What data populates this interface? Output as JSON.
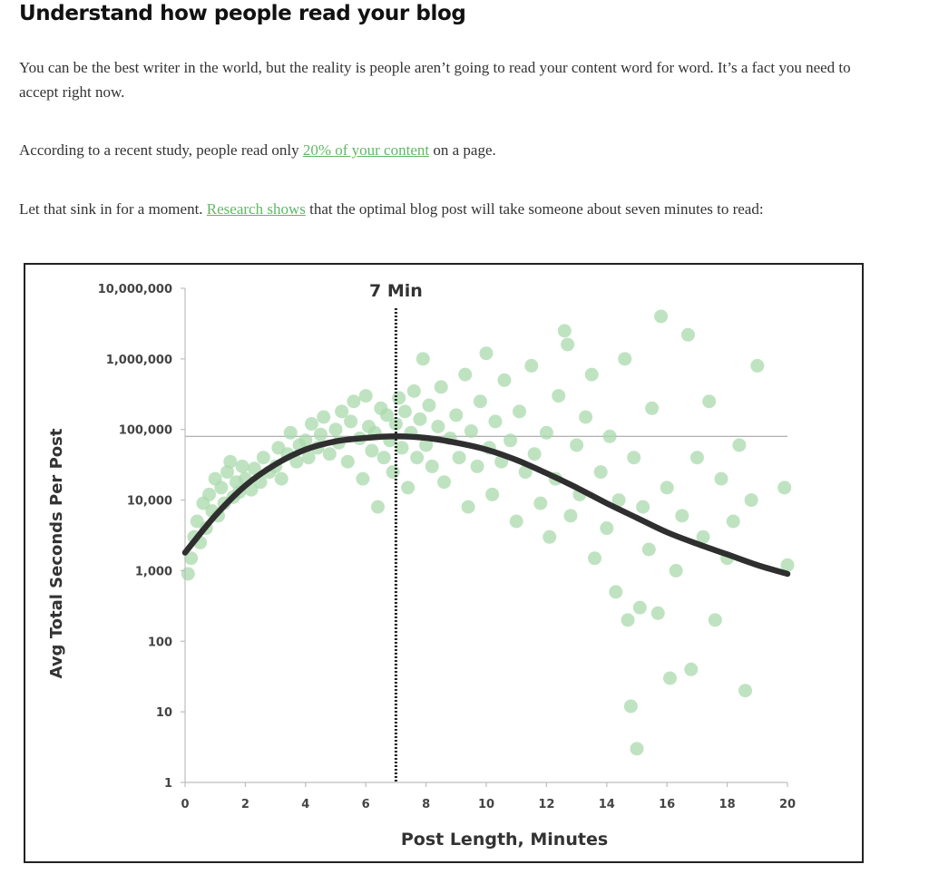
{
  "article": {
    "heading": "Understand how people read your blog",
    "para1": "You can be the best writer in the world, but the reality is people aren’t going to read your content word for word. It’s a fact you need to accept right now.",
    "para2_before": "According to a recent study, people read only ",
    "para2_link": "20% of your content",
    "para2_after": " on a page.",
    "para3_before": "Let that sink in for a moment. ",
    "para3_link": "Research shows",
    "para3_after": " that the optimal blog post will take someone about seven minutes to read:"
  },
  "colors": {
    "link": "#62b866",
    "points": "#a9d9ac",
    "curve": "#2f2f2f"
  },
  "chart_data": {
    "type": "scatter",
    "xlabel": "Post Length, Minutes",
    "ylabel": "Avg Total Seconds Per Post",
    "scale_y": "log",
    "xlim": [
      0,
      20
    ],
    "ylim": [
      1,
      10000000
    ],
    "x_ticks": [
      "0",
      "2",
      "4",
      "6",
      "8",
      "10",
      "12",
      "14",
      "16",
      "18",
      "20"
    ],
    "y_ticks": [
      {
        "value": 1,
        "label": "1"
      },
      {
        "value": 10,
        "label": "10"
      },
      {
        "value": 100,
        "label": "100"
      },
      {
        "value": 1000,
        "label": "1,000"
      },
      {
        "value": 10000,
        "label": "10,000"
      },
      {
        "value": 100000,
        "label": "100,000"
      },
      {
        "value": 1000000,
        "label": "1,000,000"
      },
      {
        "value": 10000000,
        "label": "10,000,000"
      }
    ],
    "reference_line": {
      "x": 7,
      "label": "7 Min"
    },
    "reference_hline": {
      "y": 80000
    },
    "curve": {
      "x": [
        0,
        1,
        2,
        3,
        4,
        5,
        6,
        7,
        8,
        9,
        10,
        11,
        12,
        13,
        14,
        15,
        16,
        17,
        18,
        19,
        20
      ],
      "y": [
        1800,
        6000,
        16000,
        32000,
        52000,
        68000,
        76000,
        80000,
        76000,
        65000,
        52000,
        37000,
        24000,
        15000,
        9000,
        5600,
        3500,
        2400,
        1700,
        1200,
        900
      ]
    },
    "points": [
      {
        "x": 0.1,
        "y": 900
      },
      {
        "x": 0.2,
        "y": 1500
      },
      {
        "x": 0.3,
        "y": 3000
      },
      {
        "x": 0.4,
        "y": 5000
      },
      {
        "x": 0.5,
        "y": 2500
      },
      {
        "x": 0.6,
        "y": 9000
      },
      {
        "x": 0.7,
        "y": 4000
      },
      {
        "x": 0.8,
        "y": 12000
      },
      {
        "x": 0.9,
        "y": 7000
      },
      {
        "x": 1.0,
        "y": 20000
      },
      {
        "x": 1.1,
        "y": 6000
      },
      {
        "x": 1.2,
        "y": 15000
      },
      {
        "x": 1.3,
        "y": 9000
      },
      {
        "x": 1.4,
        "y": 25000
      },
      {
        "x": 1.5,
        "y": 35000
      },
      {
        "x": 1.6,
        "y": 11000
      },
      {
        "x": 1.7,
        "y": 18000
      },
      {
        "x": 1.8,
        "y": 13000
      },
      {
        "x": 1.9,
        "y": 30000
      },
      {
        "x": 2.0,
        "y": 20000
      },
      {
        "x": 2.2,
        "y": 14000
      },
      {
        "x": 2.3,
        "y": 28000
      },
      {
        "x": 2.5,
        "y": 18000
      },
      {
        "x": 2.6,
        "y": 40000
      },
      {
        "x": 2.8,
        "y": 25000
      },
      {
        "x": 3.0,
        "y": 30000
      },
      {
        "x": 3.1,
        "y": 55000
      },
      {
        "x": 3.2,
        "y": 20000
      },
      {
        "x": 3.4,
        "y": 45000
      },
      {
        "x": 3.5,
        "y": 90000
      },
      {
        "x": 3.7,
        "y": 35000
      },
      {
        "x": 3.8,
        "y": 60000
      },
      {
        "x": 4.0,
        "y": 70000
      },
      {
        "x": 4.1,
        "y": 40000
      },
      {
        "x": 4.2,
        "y": 120000
      },
      {
        "x": 4.4,
        "y": 55000
      },
      {
        "x": 4.5,
        "y": 85000
      },
      {
        "x": 4.6,
        "y": 150000
      },
      {
        "x": 4.8,
        "y": 45000
      },
      {
        "x": 5.0,
        "y": 100000
      },
      {
        "x": 5.1,
        "y": 65000
      },
      {
        "x": 5.2,
        "y": 180000
      },
      {
        "x": 5.4,
        "y": 35000
      },
      {
        "x": 5.5,
        "y": 130000
      },
      {
        "x": 5.6,
        "y": 250000
      },
      {
        "x": 5.8,
        "y": 75000
      },
      {
        "x": 5.9,
        "y": 20000
      },
      {
        "x": 6.0,
        "y": 300000
      },
      {
        "x": 6.1,
        "y": 110000
      },
      {
        "x": 6.2,
        "y": 50000
      },
      {
        "x": 6.3,
        "y": 90000
      },
      {
        "x": 6.4,
        "y": 8000
      },
      {
        "x": 6.5,
        "y": 200000
      },
      {
        "x": 6.6,
        "y": 40000
      },
      {
        "x": 6.7,
        "y": 160000
      },
      {
        "x": 6.8,
        "y": 70000
      },
      {
        "x": 6.9,
        "y": 25000
      },
      {
        "x": 7.0,
        "y": 120000
      },
      {
        "x": 7.1,
        "y": 280000
      },
      {
        "x": 7.2,
        "y": 55000
      },
      {
        "x": 7.3,
        "y": 180000
      },
      {
        "x": 7.4,
        "y": 15000
      },
      {
        "x": 7.5,
        "y": 90000
      },
      {
        "x": 7.6,
        "y": 350000
      },
      {
        "x": 7.7,
        "y": 40000
      },
      {
        "x": 7.8,
        "y": 140000
      },
      {
        "x": 7.9,
        "y": 1000000
      },
      {
        "x": 8.0,
        "y": 60000
      },
      {
        "x": 8.1,
        "y": 220000
      },
      {
        "x": 8.2,
        "y": 30000
      },
      {
        "x": 8.4,
        "y": 110000
      },
      {
        "x": 8.5,
        "y": 400000
      },
      {
        "x": 8.6,
        "y": 18000
      },
      {
        "x": 8.8,
        "y": 75000
      },
      {
        "x": 9.0,
        "y": 160000
      },
      {
        "x": 9.1,
        "y": 40000
      },
      {
        "x": 9.3,
        "y": 600000
      },
      {
        "x": 9.4,
        "y": 8000
      },
      {
        "x": 9.5,
        "y": 95000
      },
      {
        "x": 9.7,
        "y": 30000
      },
      {
        "x": 9.8,
        "y": 250000
      },
      {
        "x": 10.0,
        "y": 1200000
      },
      {
        "x": 10.1,
        "y": 55000
      },
      {
        "x": 10.2,
        "y": 12000
      },
      {
        "x": 10.3,
        "y": 130000
      },
      {
        "x": 10.5,
        "y": 35000
      },
      {
        "x": 10.6,
        "y": 500000
      },
      {
        "x": 10.8,
        "y": 70000
      },
      {
        "x": 11.0,
        "y": 5000
      },
      {
        "x": 11.1,
        "y": 180000
      },
      {
        "x": 11.3,
        "y": 25000
      },
      {
        "x": 11.5,
        "y": 800000
      },
      {
        "x": 11.6,
        "y": 45000
      },
      {
        "x": 11.8,
        "y": 9000
      },
      {
        "x": 12.0,
        "y": 90000
      },
      {
        "x": 12.1,
        "y": 3000
      },
      {
        "x": 12.3,
        "y": 20000
      },
      {
        "x": 12.4,
        "y": 300000
      },
      {
        "x": 12.6,
        "y": 2500000
      },
      {
        "x": 12.7,
        "y": 1600000
      },
      {
        "x": 12.8,
        "y": 6000
      },
      {
        "x": 13.0,
        "y": 60000
      },
      {
        "x": 13.1,
        "y": 12000
      },
      {
        "x": 13.3,
        "y": 150000
      },
      {
        "x": 13.5,
        "y": 600000
      },
      {
        "x": 13.6,
        "y": 1500
      },
      {
        "x": 13.8,
        "y": 25000
      },
      {
        "x": 14.0,
        "y": 4000
      },
      {
        "x": 14.1,
        "y": 80000
      },
      {
        "x": 14.3,
        "y": 500
      },
      {
        "x": 14.4,
        "y": 10000
      },
      {
        "x": 14.6,
        "y": 1000000
      },
      {
        "x": 14.7,
        "y": 200
      },
      {
        "x": 14.8,
        "y": 12
      },
      {
        "x": 14.9,
        "y": 40000
      },
      {
        "x": 15.0,
        "y": 3
      },
      {
        "x": 15.1,
        "y": 300
      },
      {
        "x": 15.2,
        "y": 8000
      },
      {
        "x": 15.4,
        "y": 2000
      },
      {
        "x": 15.5,
        "y": 200000
      },
      {
        "x": 15.7,
        "y": 250
      },
      {
        "x": 15.8,
        "y": 4000000
      },
      {
        "x": 16.0,
        "y": 15000
      },
      {
        "x": 16.1,
        "y": 30
      },
      {
        "x": 16.3,
        "y": 1000
      },
      {
        "x": 16.5,
        "y": 6000
      },
      {
        "x": 16.7,
        "y": 2200000
      },
      {
        "x": 16.8,
        "y": 40
      },
      {
        "x": 17.0,
        "y": 40000
      },
      {
        "x": 17.2,
        "y": 3000
      },
      {
        "x": 17.4,
        "y": 250000
      },
      {
        "x": 17.6,
        "y": 200
      },
      {
        "x": 17.8,
        "y": 20000
      },
      {
        "x": 18.0,
        "y": 1500
      },
      {
        "x": 18.2,
        "y": 5000
      },
      {
        "x": 18.4,
        "y": 60000
      },
      {
        "x": 18.6,
        "y": 20
      },
      {
        "x": 18.8,
        "y": 10000
      },
      {
        "x": 19.0,
        "y": 800000
      },
      {
        "x": 19.9,
        "y": 15000
      },
      {
        "x": 20.0,
        "y": 1200
      }
    ]
  }
}
